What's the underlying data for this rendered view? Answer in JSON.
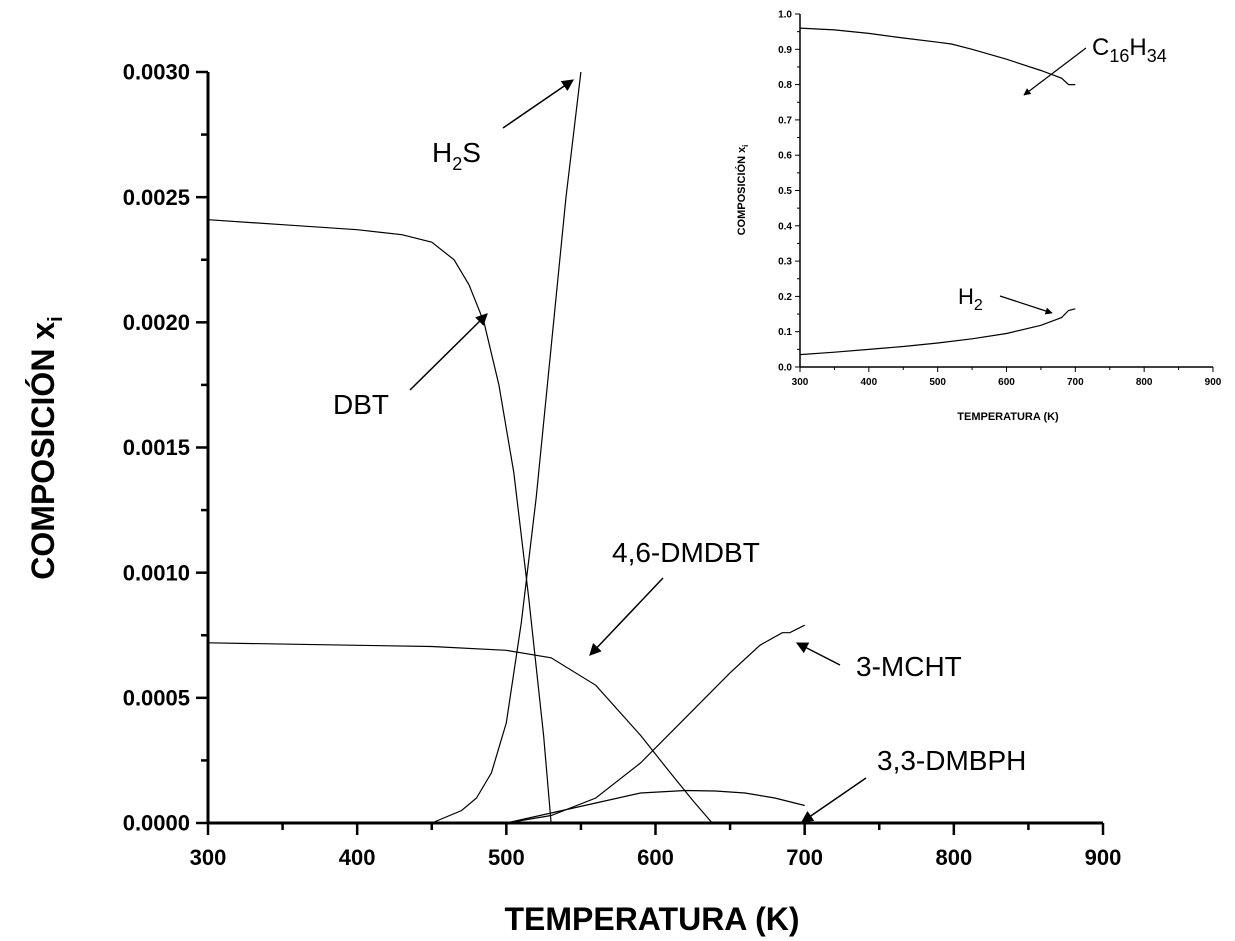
{
  "chart_data": [
    {
      "type": "line",
      "xlabel": "TEMPERATURA (K)",
      "ylabel": "COMPOSICIÓN x",
      "ylabel_sub": "i",
      "xlim": [
        300,
        900
      ],
      "ylim": [
        0,
        0.003
      ],
      "x_ticks": [
        "300",
        "400",
        "500",
        "600",
        "700",
        "800",
        "900"
      ],
      "y_ticks": [
        "0.0000",
        "0.0005",
        "0.0010",
        "0.0015",
        "0.0020",
        "0.0025",
        "0.0030"
      ],
      "grid": false,
      "series": [
        {
          "label": "DBT",
          "x": [
            300,
            350,
            400,
            430,
            450,
            465,
            475,
            485,
            495,
            505,
            515,
            525,
            530
          ],
          "y": [
            0.00241,
            0.00239,
            0.00237,
            0.00235,
            0.00232,
            0.00225,
            0.00215,
            0.002,
            0.00175,
            0.0014,
            0.0009,
            0.00035,
            0.0
          ]
        },
        {
          "label": "H2S",
          "x": [
            450,
            470,
            480,
            490,
            500,
            510,
            520,
            530,
            540,
            550
          ],
          "y": [
            0.0,
            5e-05,
            0.0001,
            0.0002,
            0.0004,
            0.0008,
            0.0013,
            0.0019,
            0.0025,
            0.003
          ]
        },
        {
          "label": "4,6-DMDBT",
          "x": [
            300,
            400,
            450,
            500,
            530,
            560,
            590,
            610,
            625,
            638
          ],
          "y": [
            0.00072,
            0.00071,
            0.000705,
            0.00069,
            0.00066,
            0.00055,
            0.00035,
            0.0002,
            9e-05,
            0.0
          ]
        },
        {
          "label": "3-MCHT",
          "x": [
            500,
            530,
            560,
            590,
            620,
            650,
            670,
            685,
            690,
            700
          ],
          "y": [
            0.0,
            3e-05,
            0.0001,
            0.00024,
            0.00042,
            0.0006,
            0.00071,
            0.00076,
            0.00076,
            0.00079
          ]
        },
        {
          "label": "3,3-DMBPH",
          "x": [
            500,
            530,
            560,
            590,
            620,
            640,
            660,
            680,
            700
          ],
          "y": [
            0.0,
            4e-05,
            8e-05,
            0.00012,
            0.00013,
            0.000128,
            0.00012,
            0.0001,
            7e-05
          ]
        }
      ],
      "annotations": [
        {
          "text": "H",
          "sub": "2",
          "tail": "S"
        },
        {
          "text": "DBT"
        },
        {
          "text": "4,6-DMDBT"
        },
        {
          "text": "3-MCHT"
        },
        {
          "text": "3,3-DMBPH"
        }
      ]
    },
    {
      "type": "line",
      "xlabel": "TEMPERATURA (K)",
      "ylabel": "COMPOSICIÓN x",
      "ylabel_sub": "i",
      "xlim": [
        300,
        900
      ],
      "ylim": [
        0,
        1.0
      ],
      "x_ticks": [
        "300",
        "400",
        "500",
        "600",
        "700",
        "800",
        "900"
      ],
      "y_ticks": [
        "0.0",
        "0.1",
        "0.2",
        "0.3",
        "0.4",
        "0.5",
        "0.6",
        "0.7",
        "0.8",
        "0.9",
        "1.0"
      ],
      "grid": false,
      "series": [
        {
          "label": "C16H34",
          "x": [
            300,
            350,
            400,
            450,
            500,
            520,
            550,
            600,
            650,
            680,
            690,
            700
          ],
          "y": [
            0.96,
            0.955,
            0.945,
            0.932,
            0.92,
            0.915,
            0.9,
            0.872,
            0.84,
            0.818,
            0.8,
            0.8
          ]
        },
        {
          "label": "H2",
          "x": [
            300,
            350,
            400,
            450,
            500,
            550,
            600,
            650,
            680,
            690,
            700
          ],
          "y": [
            0.035,
            0.042,
            0.05,
            0.058,
            0.068,
            0.08,
            0.095,
            0.118,
            0.14,
            0.16,
            0.165
          ]
        }
      ],
      "annotations": [
        {
          "text": "C",
          "sub1": "16",
          "mid": "H",
          "sub2": "34"
        },
        {
          "text": "H",
          "sub": "2"
        }
      ]
    }
  ]
}
